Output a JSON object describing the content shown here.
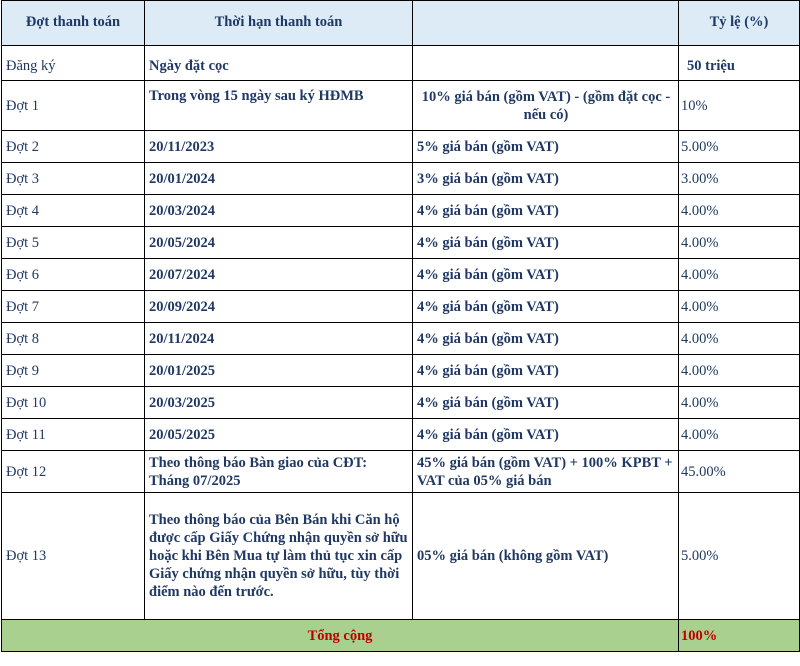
{
  "headers": {
    "dot": "Đợt thanh toán",
    "time": "Thời hạn thanh toán",
    "amount": "",
    "rate": "Tỷ lệ (%)"
  },
  "rows": [
    {
      "dot": "Đăng ký",
      "time": "Ngày đặt cọc",
      "amount": "",
      "rate": "50 triệu"
    },
    {
      "dot": "Đợt 1",
      "time": "Trong vòng 15 ngày sau ký HĐMB",
      "amount": "10% giá bán (gồm VAT) - (gồm đặt cọc - nếu có)",
      "rate": "10%"
    },
    {
      "dot": "Đợt 2",
      "time": "20/11/2023",
      "amount": "5% giá bán (gồm VAT)",
      "rate": "5.00%"
    },
    {
      "dot": "Đợt 3",
      "time": "20/01/2024",
      "amount": "3% giá bán (gồm VAT)",
      "rate": "3.00%"
    },
    {
      "dot": "Đợt 4",
      "time": "20/03/2024",
      "amount": "4% giá bán (gồm VAT)",
      "rate": "4.00%"
    },
    {
      "dot": "Đợt 5",
      "time": "20/05/2024",
      "amount": "4% giá bán (gồm VAT)",
      "rate": "4.00%"
    },
    {
      "dot": "Đợt 6",
      "time": "20/07/2024",
      "amount": "4% giá bán (gồm VAT)",
      "rate": "4.00%"
    },
    {
      "dot": "Đợt 7",
      "time": "20/09/2024",
      "amount": "4% giá bán (gồm VAT)",
      "rate": "4.00%"
    },
    {
      "dot": "Đợt 8",
      "time": "20/11/2024",
      "amount": "4% giá bán (gồm VAT)",
      "rate": "4.00%"
    },
    {
      "dot": "Đợt 9",
      "time": "20/01/2025",
      "amount": "4% giá bán (gồm VAT)",
      "rate": "4.00%"
    },
    {
      "dot": "Đợt 10",
      "time": "20/03/2025",
      "amount": "4% giá bán (gồm VAT)",
      "rate": "4.00%"
    },
    {
      "dot": "Đợt 11",
      "time": "20/05/2025",
      "amount": "4% giá bán (gồm VAT)",
      "rate": "4.00%"
    },
    {
      "dot": "Đợt 12",
      "time": "Theo thông báo Bàn giao của CĐT: Tháng 07/2025",
      "amount": "45% giá bán (gồm VAT) + 100% KPBT + VAT của 05% giá bán",
      "rate": "45.00%"
    },
    {
      "dot": "Đợt 13",
      "time": "Theo thông báo của Bên Bán khi Căn hộ được cấp Giấy Chứng nhận quyền sở hữu hoặc khi Bên Mua tự làm thủ tục xin cấp Giấy chứng nhận quyền sở hữu, tùy thời điểm nào đến trước.",
      "amount": "05% giá bán (không gồm VAT)",
      "rate": "5.00%"
    }
  ],
  "total": {
    "label": "Tổng cộng",
    "value": "100%"
  },
  "colors": {
    "header_bg": "#ddebf7",
    "total_bg": "#a9d08e",
    "total_text": "#c00000",
    "body_text": "#1f3864"
  }
}
